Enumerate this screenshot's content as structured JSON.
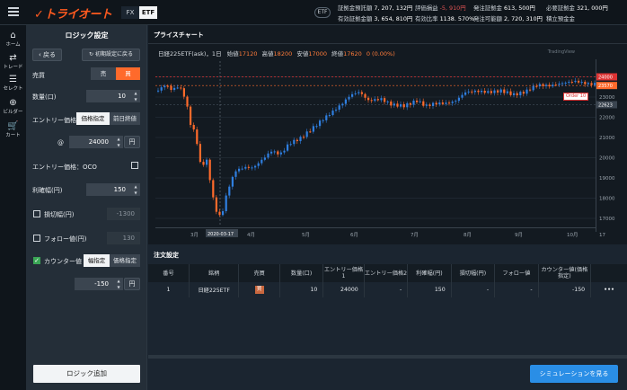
{
  "topbar": {
    "logo": "トライオート",
    "tabs": [
      "FX",
      "ETF"
    ],
    "etf_badge": "ETF",
    "stats": [
      {
        "label": "証拠金預託額",
        "value": "7, 207, 132円"
      },
      {
        "label": "評価損益",
        "value": "-5, 910円"
      },
      {
        "label": "発注証拠金",
        "value": "613, 500円"
      },
      {
        "label": "必要証拠金",
        "value": "321, 000円"
      },
      {
        "label": "有効証拠金額",
        "value": "3, 654, 810円"
      },
      {
        "label": "有効比率",
        "value": "1138. 570%"
      },
      {
        "label": "発注可能額",
        "value": "2, 720, 310円"
      },
      {
        "label": "積立預金金",
        "value": ""
      }
    ]
  },
  "nav": [
    {
      "label": "ホーム",
      "icon": "home-icon"
    },
    {
      "label": "トレード",
      "icon": "trade-icon"
    },
    {
      "label": "セレクト",
      "icon": "select-icon"
    },
    {
      "label": "ビルダー",
      "icon": "builder-icon"
    },
    {
      "label": "カート",
      "icon": "cart-icon"
    }
  ],
  "panel": {
    "title": "ロジック設定",
    "back": "戻る",
    "reset": "初期設定に戻る",
    "sell_buy_label": "売買",
    "sell": "売",
    "buy": "買",
    "qty_label": "数量(口)",
    "qty": "10",
    "entry_label": "エントリー価格",
    "entry_opt1": "価格指定",
    "entry_opt2": "前日終値",
    "at": "@",
    "entry_price": "24000",
    "yen": "円",
    "oco_label": "エントリー価格：OCO",
    "take_profit_label": "利確幅(円)",
    "take_profit": "150",
    "stop_loss_label": "損切幅(円)",
    "stop_loss_placeholder": "-1300",
    "follow_label": "フォロー値(円)",
    "follow_placeholder": "130",
    "counter_label": "カウンター値",
    "counter_opt1": "幅指定",
    "counter_opt2": "価格指定",
    "counter_value": "-150",
    "add_logic": "ロジック追加"
  },
  "chart": {
    "tab": "プライスチャート",
    "symbol": "日経225ETF(ask)，1日",
    "open_label": "始値",
    "open": "17120",
    "high_label": "高値",
    "high": "18200",
    "low_label": "安値",
    "low": "17000",
    "close_label": "終値",
    "close": "17620",
    "change": "0 (0.00%)",
    "watermark": "TradingView",
    "order_tag": "Order 10",
    "price_ticks": [
      "24000",
      "23000",
      "22000",
      "21000",
      "20000",
      "19000",
      "18000",
      "17000"
    ],
    "highlighted_prices": [
      "24000",
      "23570",
      "22623"
    ],
    "date_ticks": [
      "3月",
      "4月",
      "5月",
      "6月",
      "7月",
      "8月",
      "9月",
      "10月",
      "17"
    ],
    "crosshair_date": "2020-03-17"
  },
  "orders": {
    "tab": "注文設定",
    "columns": [
      "番号",
      "銘柄",
      "売買",
      "数量(口)",
      "エントリー価格1",
      "エントリー価格2",
      "利確幅(円)",
      "損切幅(円)",
      "フォロー値",
      "カウンター値(価格指定)"
    ],
    "rows": [
      {
        "no": "1",
        "name": "日経225ETF",
        "side": "買",
        "qty": "10",
        "entry1": "24000",
        "entry2": "-",
        "tp": "150",
        "sl": "-",
        "follow": "-",
        "counter": "-150",
        "more": "•••"
      }
    ],
    "simulate": "シミュレーションを見る"
  },
  "colors": {
    "up": "#2f7fe0",
    "down": "#ff6a2b",
    "accent": "#ff5a1f"
  }
}
